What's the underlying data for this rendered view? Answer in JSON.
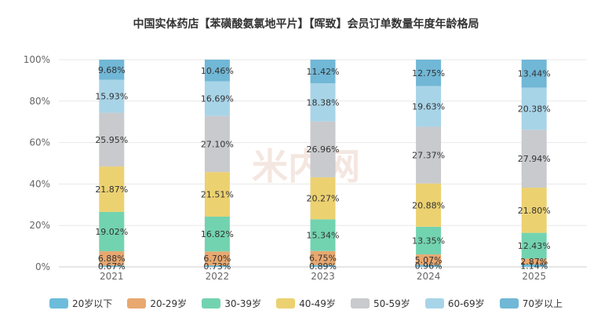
{
  "title": "中国实体药店【苯磺酸氨氯地平片】【晖致】会员订单数量年度年龄格局",
  "watermark": "米内网",
  "chart_data": {
    "type": "bar",
    "stacked": true,
    "categories": [
      "2021",
      "2022",
      "2023",
      "2024",
      "2025"
    ],
    "ylim": [
      0,
      100
    ],
    "yticks": [
      "0%",
      "20%",
      "40%",
      "60%",
      "80%",
      "100%"
    ],
    "grid": true,
    "legend_position": "bottom",
    "series": [
      {
        "name": "20岁以下",
        "color": "#6dbcdb",
        "values": [
          0.67,
          0.73,
          0.89,
          0.96,
          1.14
        ],
        "labels": [
          "0.67%",
          "0.73%",
          "0.89%",
          "0.96%",
          "1.14%"
        ]
      },
      {
        "name": "20-29岁",
        "color": "#e8a870",
        "values": [
          6.88,
          6.7,
          6.75,
          5.07,
          2.87
        ],
        "labels": [
          "6.88%",
          "6.70%",
          "6.75%",
          "5.07%",
          "2.87%"
        ]
      },
      {
        "name": "30-39岁",
        "color": "#72d3b0",
        "values": [
          19.02,
          16.82,
          15.34,
          13.35,
          12.43
        ],
        "labels": [
          "19.02%",
          "16.82%",
          "15.34%",
          "13.35%",
          "12.43%"
        ]
      },
      {
        "name": "40-49岁",
        "color": "#ecd171",
        "values": [
          21.87,
          21.51,
          20.27,
          20.88,
          21.8
        ],
        "labels": [
          "21.87%",
          "21.51%",
          "20.27%",
          "20.88%",
          "21.80%"
        ]
      },
      {
        "name": "50-59岁",
        "color": "#c8cacd",
        "values": [
          25.95,
          27.1,
          26.96,
          27.37,
          27.94
        ],
        "labels": [
          "25.95%",
          "27.10%",
          "26.96%",
          "27.37%",
          "27.94%"
        ]
      },
      {
        "name": "60-69岁",
        "color": "#a8d4e8",
        "values": [
          15.93,
          16.69,
          18.38,
          19.63,
          20.38
        ],
        "labels": [
          "15.93%",
          "16.69%",
          "18.38%",
          "19.63%",
          "20.38%"
        ]
      },
      {
        "name": "70岁以上",
        "color": "#71b7d6",
        "values": [
          9.68,
          10.46,
          11.42,
          12.75,
          13.44
        ],
        "labels": [
          "9.68%",
          "10.46%",
          "11.42%",
          "12.75%",
          "13.44%"
        ]
      }
    ]
  }
}
